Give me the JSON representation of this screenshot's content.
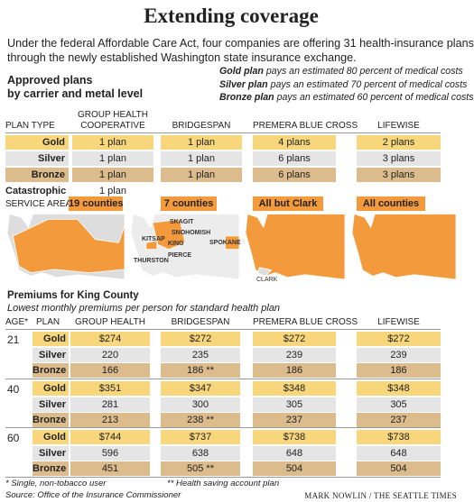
{
  "header": {
    "title": "Extending coverage",
    "intro": [
      "Under the federal Affordable Care Act, four companies are offering 31 health-insurance plans",
      "through the newly established Washington state insurance exchange."
    ]
  },
  "plans": {
    "heading": [
      "Approved plans",
      "by carrier and metal level"
    ],
    "legend": [
      {
        "term": "Gold plan",
        "text": "pays an estimated 80 percent of medical costs"
      },
      {
        "term": "Silver plan",
        "text": "pays an estimated 70 percent of medical costs"
      },
      {
        "term": "Bronze plan",
        "text": "pays an estimated 60 percent of medical costs"
      }
    ],
    "plan_type_label": "PLAN TYPE",
    "columns": [
      [
        "GROUP HEALTH",
        "COOPERATIVE"
      ],
      [
        "BRIDGESPAN"
      ],
      [
        "PREMERA BLUE CROSS"
      ],
      [
        "LIFEWISE"
      ]
    ],
    "rows": [
      {
        "level": "Gold",
        "cells": [
          "1 plan",
          "1 plan",
          "4 plans",
          "2 plans"
        ]
      },
      {
        "level": "Silver",
        "cells": [
          "1 plan",
          "1 plan",
          "6 plans",
          "3 plans"
        ]
      },
      {
        "level": "Bronze",
        "cells": [
          "1 plan",
          "1 plan",
          "6 plans",
          "3 plans"
        ]
      },
      {
        "level": "Catastrophic",
        "cells": [
          "1 plan"
        ]
      }
    ],
    "service_area": {
      "label": "SERVICE AREA",
      "cells": [
        "19 counties",
        "7 counties",
        "All but Clark",
        "All counties"
      ]
    },
    "map_labels": {
      "bridgespan": [
        "SKAGIT",
        "SNOHOMISH",
        "KITSAP",
        "KING",
        "SPOKANE",
        "THURSTON",
        "PIERCE"
      ],
      "premera": [
        "CLARK"
      ]
    }
  },
  "premiums": {
    "title": "Premiums for King County",
    "subtitle": "Lowest monthly premiums per person for standard health plan",
    "columns": [
      "AGE*",
      "PLAN",
      "GROUP HEALTH",
      "BRIDGESPAN",
      "PREMERA BLUE CROSS",
      "LIFEWISE"
    ],
    "groups": [
      {
        "age": "21",
        "rows": [
          {
            "plan": "Gold",
            "cells": [
              "$274",
              "$272",
              "$272",
              "$272"
            ]
          },
          {
            "plan": "Silver",
            "cells": [
              "220",
              "235",
              "239",
              "239"
            ]
          },
          {
            "plan": "Bronze",
            "cells": [
              "166",
              "186 **",
              "186",
              "186"
            ]
          }
        ]
      },
      {
        "age": "40",
        "rows": [
          {
            "plan": "Gold",
            "cells": [
              "$351",
              "$347",
              "$348",
              "$348"
            ]
          },
          {
            "plan": "Silver",
            "cells": [
              "281",
              "300",
              "305",
              "305"
            ]
          },
          {
            "plan": "Bronze",
            "cells": [
              "213",
              "238 **",
              "237",
              "237"
            ]
          }
        ]
      },
      {
        "age": "60",
        "rows": [
          {
            "plan": "Gold",
            "cells": [
              "$744",
              "$737",
              "$738",
              "$738"
            ]
          },
          {
            "plan": "Silver",
            "cells": [
              "596",
              "638",
              "648",
              "648"
            ]
          },
          {
            "plan": "Bronze",
            "cells": [
              "451",
              "505 **",
              "504",
              "504"
            ]
          }
        ]
      }
    ]
  },
  "footer": {
    "notes": [
      "* Single, non-tobacco user",
      "** Health saving account plan"
    ],
    "source": "Source: Office of the Insurance Commissioner",
    "credit": "MARK NOWLIN / THE SEATTLE TIMES"
  }
}
